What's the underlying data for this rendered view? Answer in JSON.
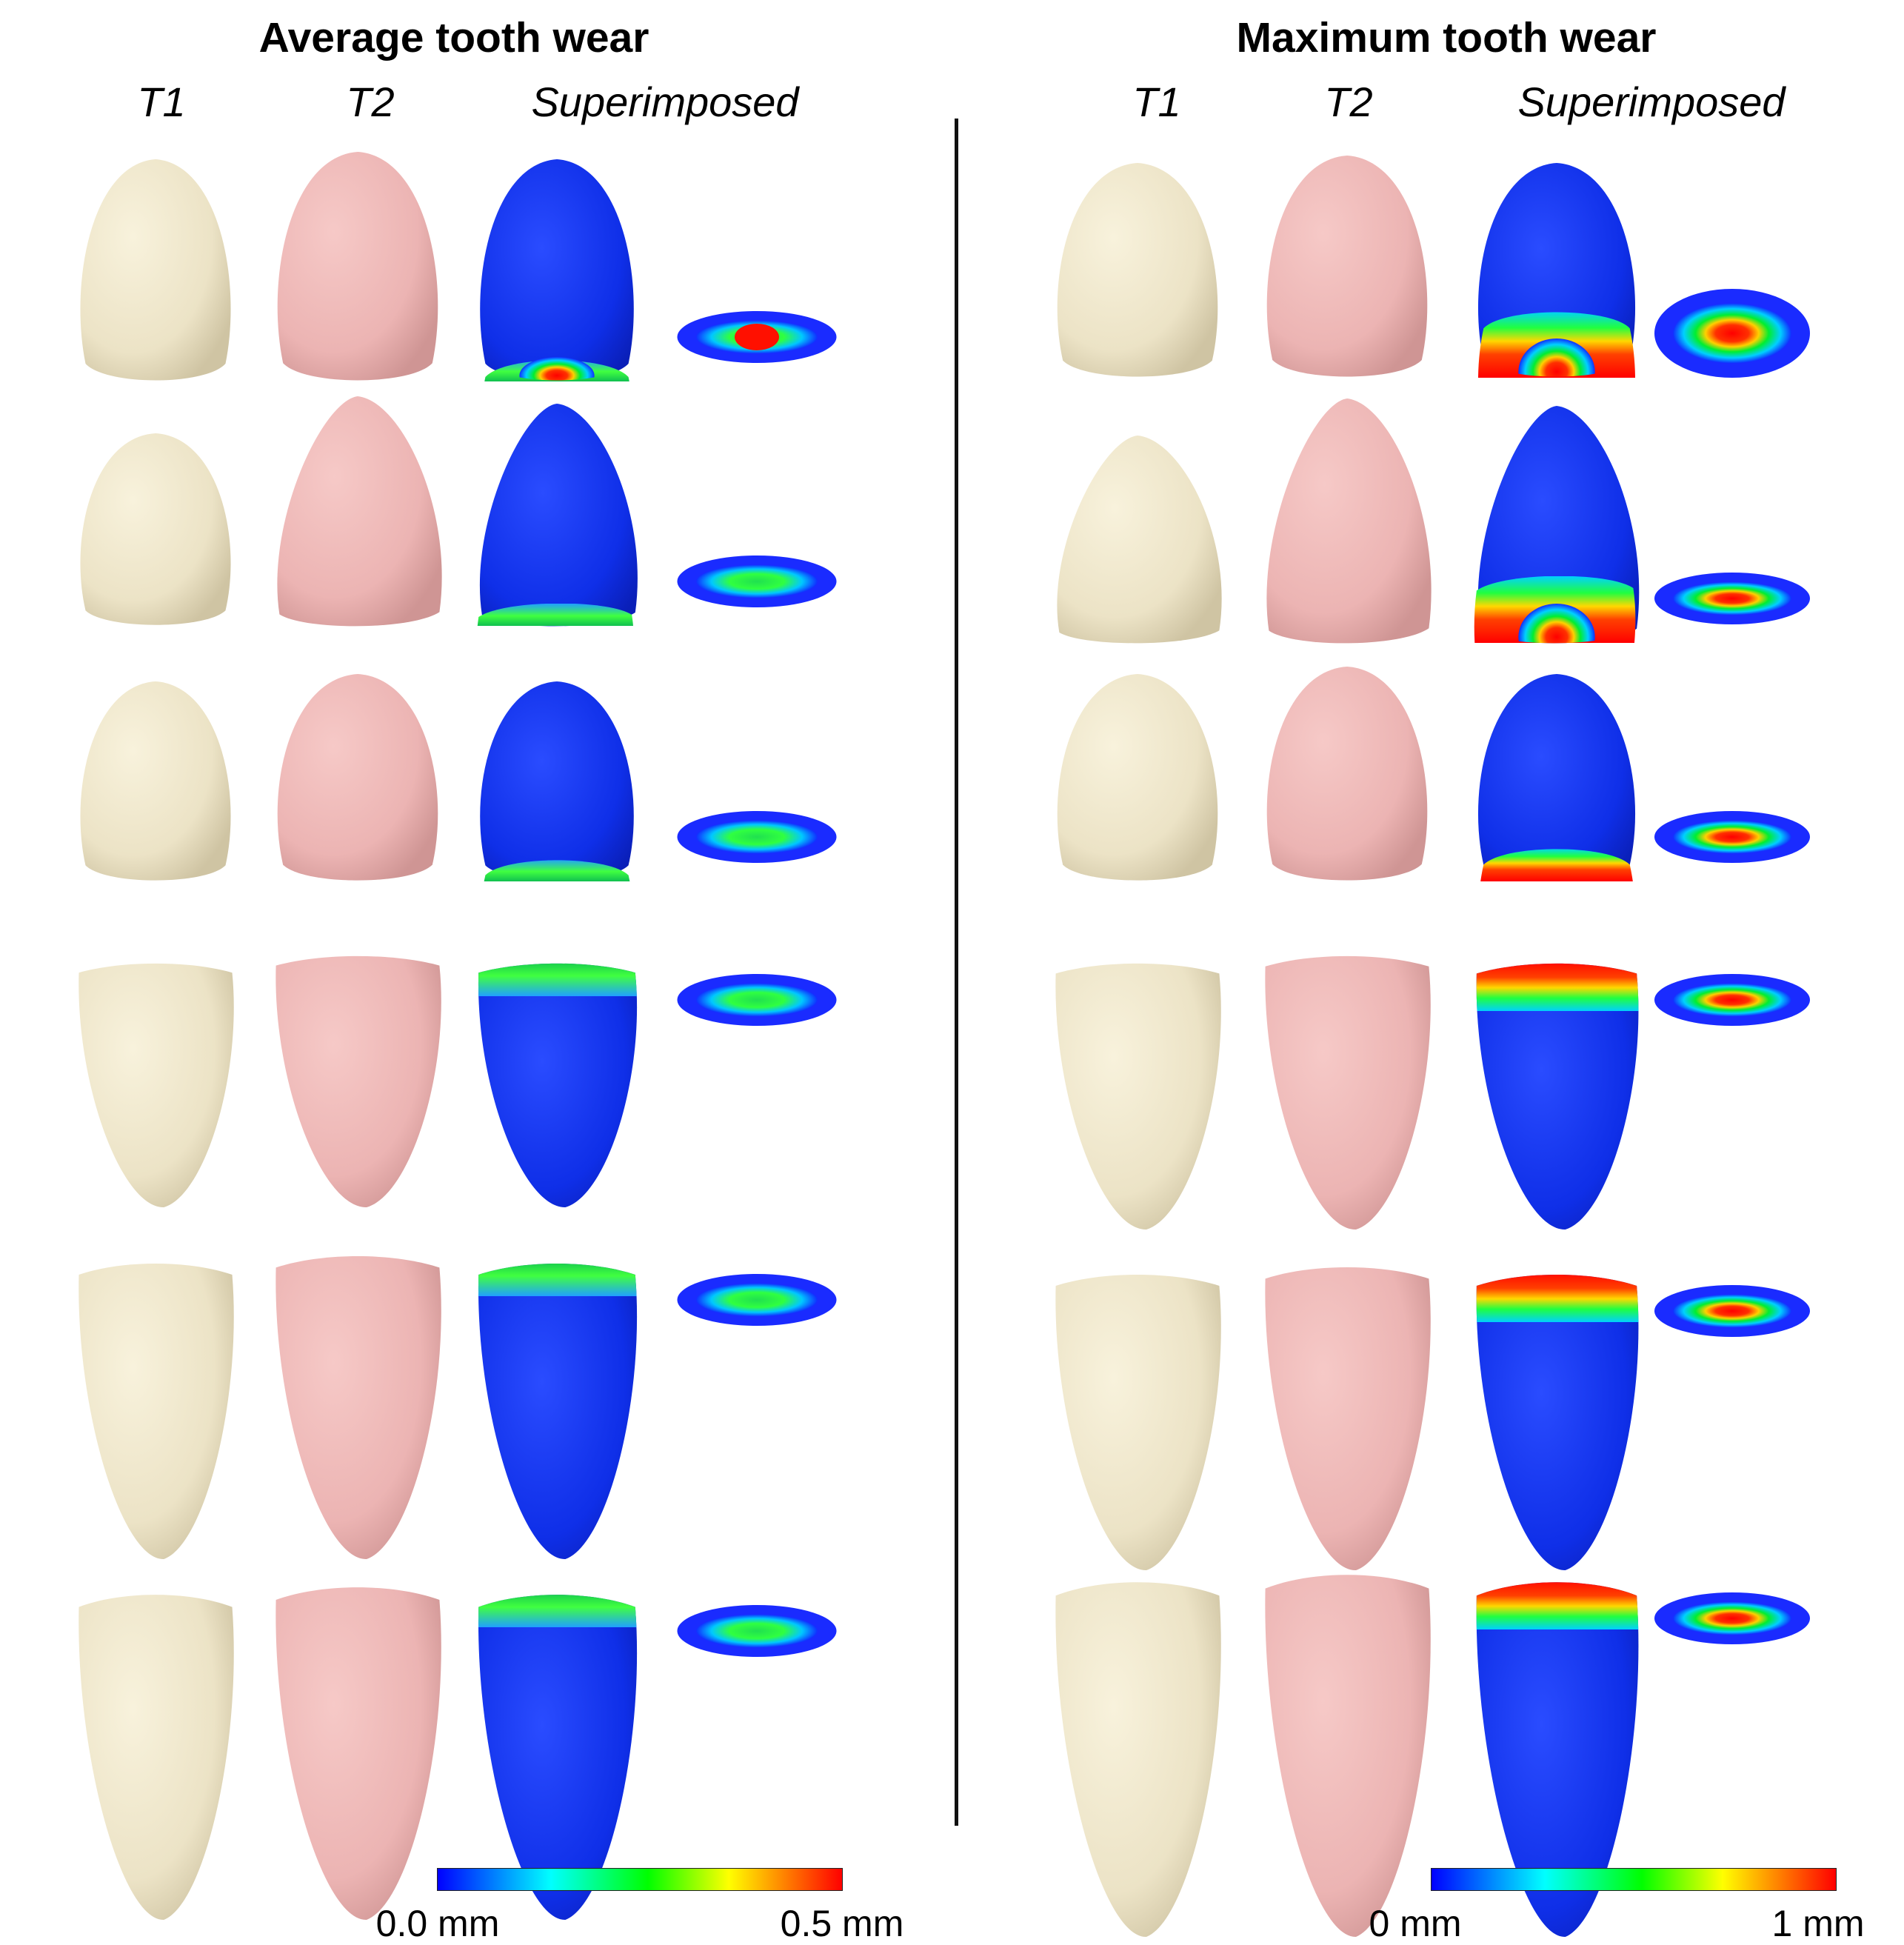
{
  "panels": [
    {
      "title": "Average tooth wear",
      "columns": [
        "T1",
        "T2",
        "Superimposed"
      ],
      "scale": {
        "min_label": "0.0 mm",
        "max_label": "0.5 mm"
      }
    },
    {
      "title": "Maximum tooth wear",
      "columns": [
        "T1",
        "T2",
        "Superimposed"
      ],
      "scale": {
        "min_label": "0 mm",
        "max_label": "1 mm"
      }
    }
  ],
  "colors": {
    "t1_tooth": "#ece3c6",
    "t2_tooth": "#ecb4b3",
    "colormap": [
      "#0000ff",
      "#00ffff",
      "#00ff00",
      "#ffff00",
      "#ff0000"
    ]
  }
}
